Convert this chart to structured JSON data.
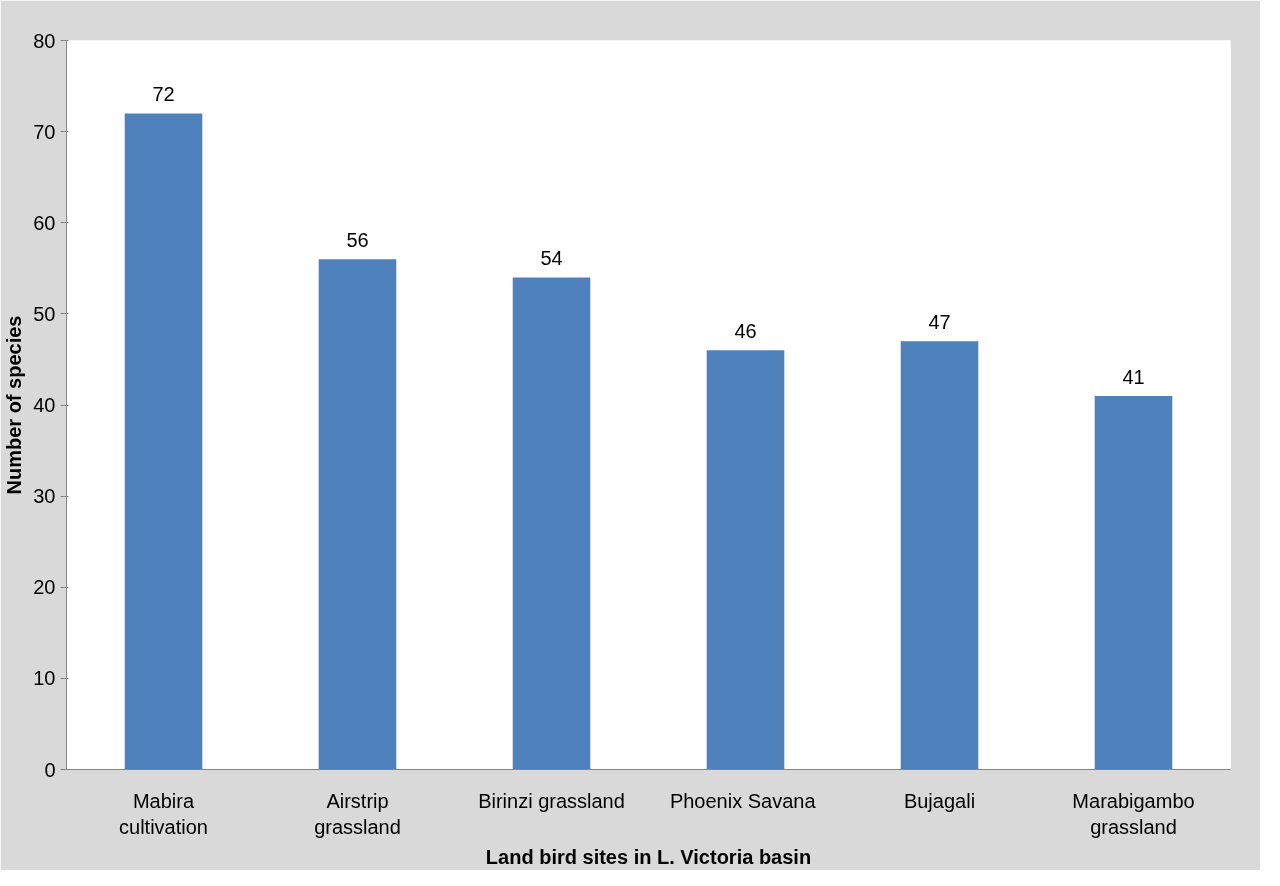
{
  "chart_data": {
    "type": "bar",
    "xlabel": "Land bird sites in L. Victoria basin",
    "ylabel": "Number of species",
    "categories": [
      "Mabira\ncultivation",
      "Airstrip\ngrassland",
      "Birinzi grassland",
      "Phoenix  Savana",
      "Bujagali",
      "Marabigambo\ngrassland"
    ],
    "values": [
      72,
      56,
      54,
      46,
      47,
      41
    ],
    "color": "#4f81bd",
    "ylim": [
      0,
      80
    ],
    "yticks": [
      0,
      10,
      20,
      30,
      40,
      50,
      60,
      70,
      80
    ],
    "grid": false,
    "data_labels": true
  }
}
